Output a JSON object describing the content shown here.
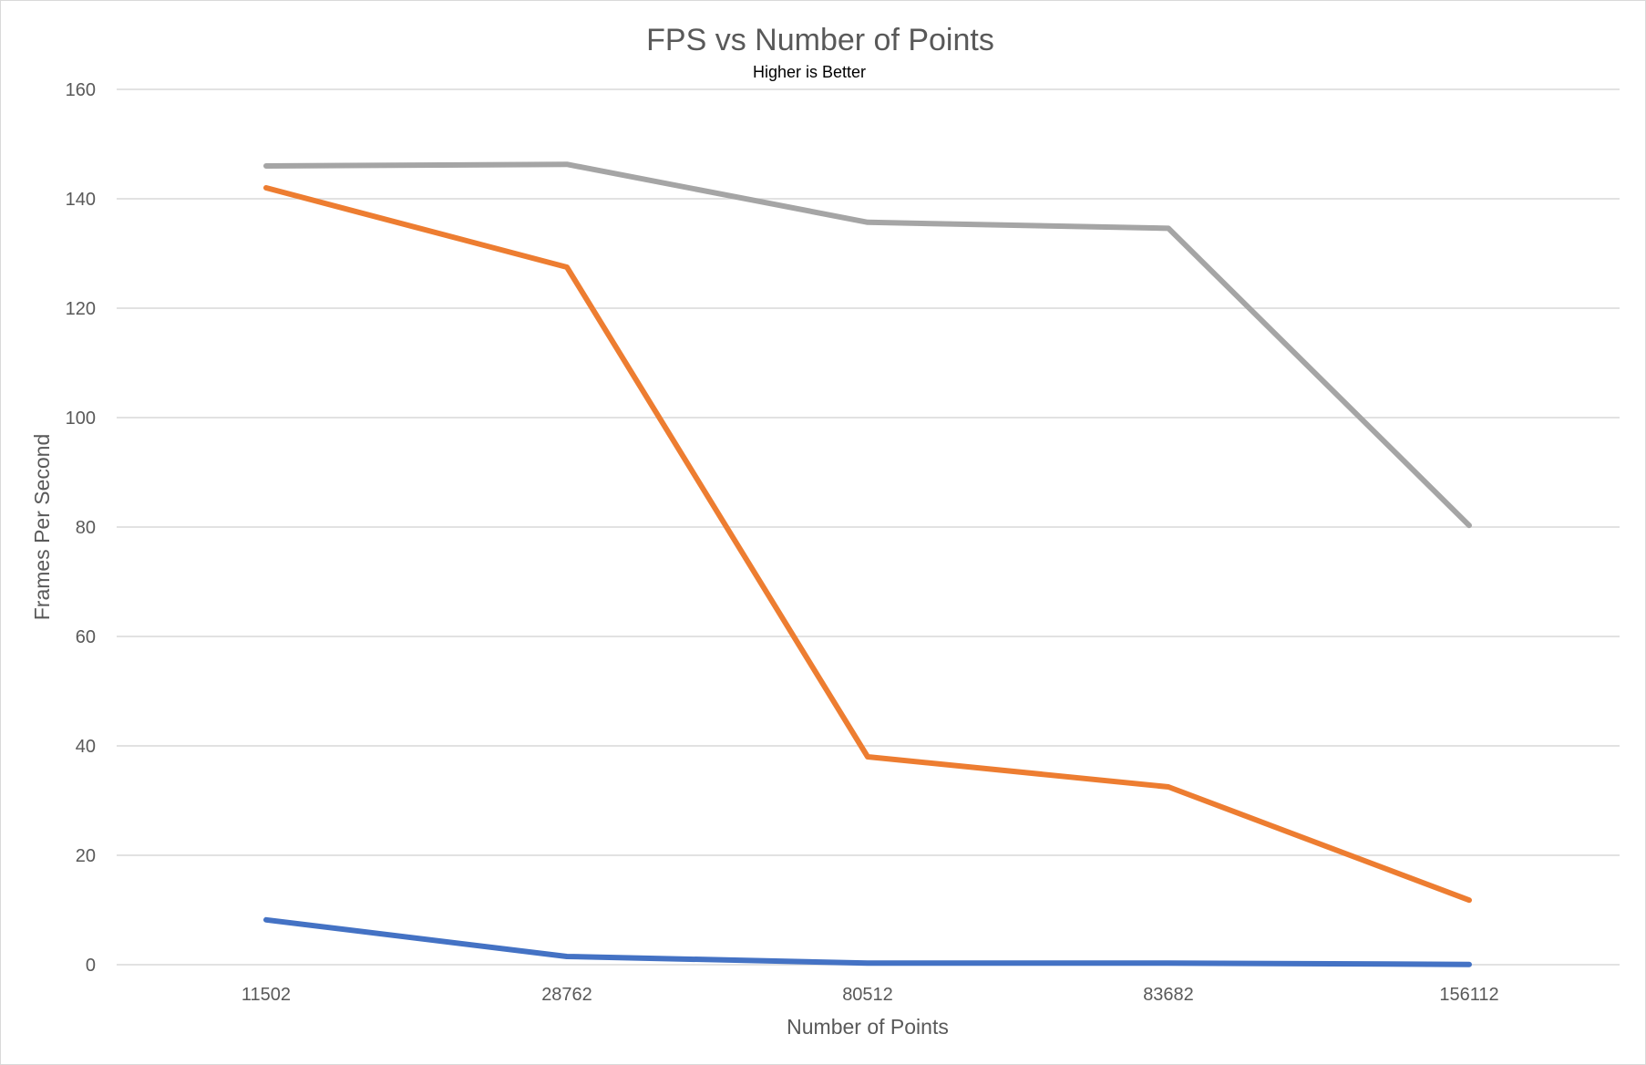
{
  "chart_data": {
    "type": "line",
    "title": "FPS vs Number of Points",
    "subtitle": "Higher is Better",
    "xlabel": "Number of Points",
    "ylabel": "Frames Per Second",
    "categories": [
      "11502",
      "28762",
      "80512",
      "83682",
      "156112"
    ],
    "ylim": [
      0,
      160
    ],
    "yticks": [
      0,
      20,
      40,
      60,
      80,
      100,
      120,
      140,
      160
    ],
    "grid": true,
    "legend": "none",
    "series": [
      {
        "color": "#4472C4",
        "values": [
          8.2,
          1.5,
          0.3,
          0.3,
          0.05
        ]
      },
      {
        "color": "#ED7D31",
        "values": [
          142,
          127.5,
          38,
          32.5,
          11.8
        ]
      },
      {
        "color": "#A5A5A5",
        "values": [
          146,
          146.3,
          135.7,
          134.6,
          80.3
        ]
      }
    ]
  }
}
